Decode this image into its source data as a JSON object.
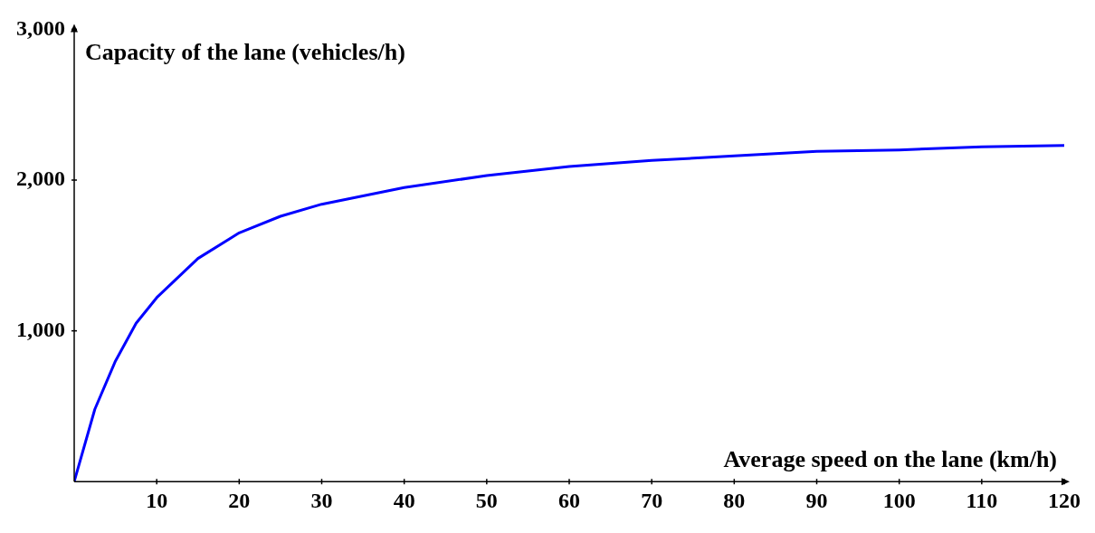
{
  "chart_data": {
    "type": "line",
    "xlabel": "Average speed on the lane (km/h)",
    "ylabel": "Capacity of the lane (vehicles/h)",
    "x": [
      0,
      2.5,
      5,
      7.5,
      10,
      15,
      20,
      25,
      30,
      40,
      50,
      60,
      70,
      80,
      90,
      100,
      110,
      120
    ],
    "series": [
      {
        "color": "#0000ff",
        "values": [
          0,
          480,
          800,
          1050,
          1220,
          1480,
          1650,
          1760,
          1840,
          1950,
          2030,
          2090,
          2130,
          2160,
          2190,
          2200,
          2220,
          2230
        ]
      }
    ],
    "xlim": [
      0,
      120
    ],
    "xticks": [
      10,
      20,
      30,
      40,
      50,
      60,
      70,
      80,
      90,
      100,
      110,
      120
    ],
    "ylim": [
      0,
      3000
    ],
    "yticks": [
      {
        "value": 1000,
        "label": "1,000"
      },
      {
        "value": 2000,
        "label": "2,000"
      },
      {
        "value": 3000,
        "label": "3,000"
      }
    ],
    "grid": false,
    "legend": false,
    "marker": "none",
    "line_style": "solid"
  }
}
